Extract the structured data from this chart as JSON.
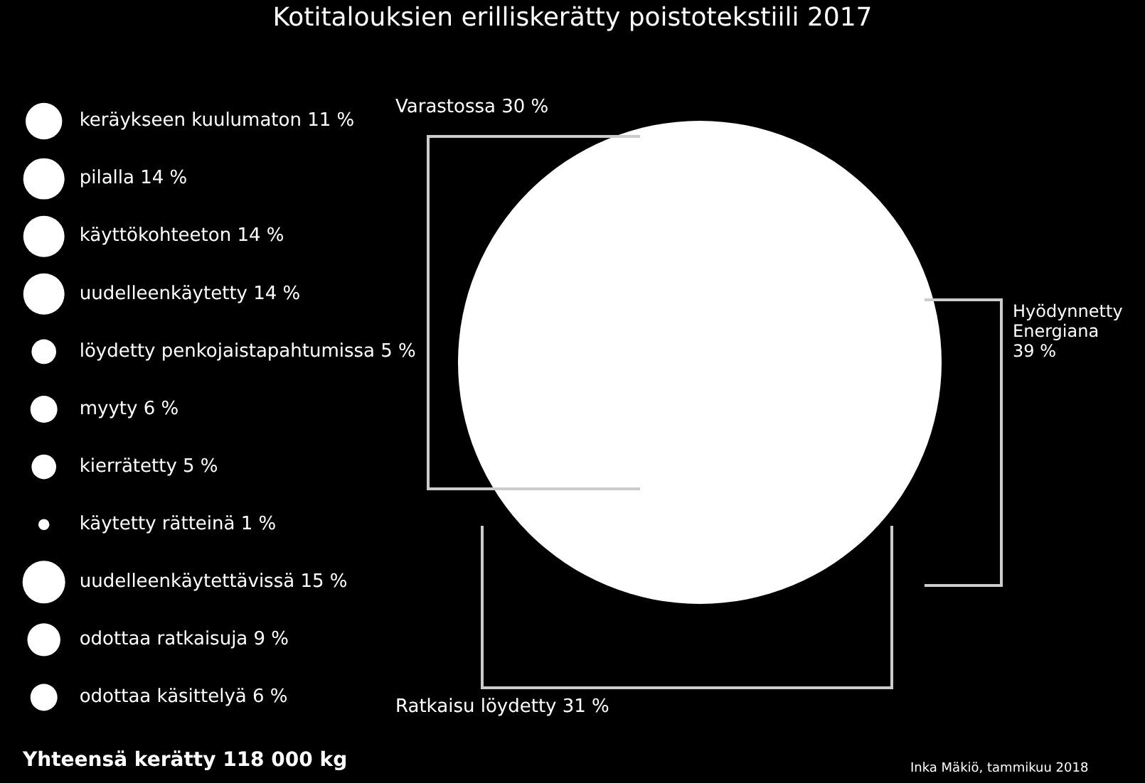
{
  "chart_data": {
    "type": "other",
    "title": "Kotitalouksien erilliskerätty poistotekstiili 2017",
    "categories": [
      "keräykseen kuulumaton",
      "pilalla",
      "käyttökohteeton",
      "uudelleenkäytetty",
      "löydetty penkojaistapahtumissa",
      "myyty",
      "kierrätetty",
      "käytetty rätteinä",
      "uudelleenkäytettävissä",
      "odottaa ratkaisuja",
      "odottaa käsittelyä"
    ],
    "values": [
      11,
      14,
      14,
      14,
      5,
      6,
      5,
      1,
      15,
      9,
      6
    ],
    "value_labels": [
      "11 %",
      "14 %",
      "14 %",
      "14 %",
      "5 %",
      "6 %",
      "5 %",
      "1 %",
      "15 %",
      "9 %",
      "6 %"
    ],
    "color": "#ffffff",
    "annotations": [
      "Varastossa 30 %",
      "Hyödynnetty\nEnergiana\n39 %",
      "Ratkaisu löydetty 31 %",
      "Yhteensä kerätty 118 000 kg",
      "Inka Mäkiö, tammikuu 2018"
    ]
  }
}
